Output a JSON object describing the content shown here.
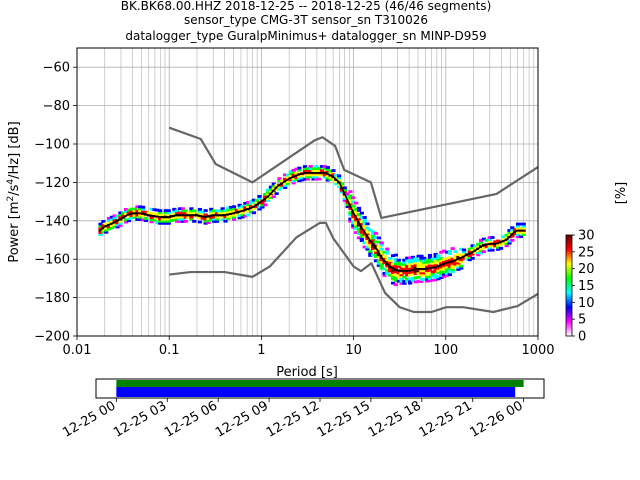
{
  "title_lines": [
    "BK.BK68.00.HHZ   2018-12-25 -- 2018-12-25  (46/46 segments)",
    "sensor_type CMG-3T sensor_sn T310026",
    "datalogger_type GuralpMinimus+ datalogger_sn MINP-D959"
  ],
  "chart_data": [
    {
      "type": "heatmap",
      "title": "",
      "xlabel": "Period [s]",
      "ylabel_parts": [
        "Power [m",
        "2",
        "/s",
        "4",
        "/Hz] [dB]"
      ],
      "xscale": "log",
      "xlim": [
        0.01,
        1000
      ],
      "ylim": [
        -200,
        -50
      ],
      "x_tick_labels": [
        "0.01",
        "0.1",
        "1",
        "10",
        "100",
        "1000"
      ],
      "y_ticks": [
        -60,
        -80,
        -100,
        -120,
        -140,
        -160,
        -180,
        -200
      ],
      "y_tick_labels": [
        "−60",
        "−80",
        "−100",
        "−120",
        "−140",
        "−160",
        "−180",
        "−200"
      ],
      "grid": true,
      "colormap": [
        "#ffffff",
        "#ff00ff",
        "#0000ff",
        "#00ffff",
        "#00ff00",
        "#ffff00",
        "#ff0000",
        "#600000"
      ],
      "series": [
        {
          "key": "mode",
          "color": "#000000",
          "x": [
            0.018,
            0.02,
            0.025,
            0.03,
            0.035,
            0.04,
            0.05,
            0.06,
            0.08,
            0.1,
            0.12,
            0.15,
            0.2,
            0.25,
            0.3,
            0.4,
            0.5,
            0.6,
            0.8,
            1.0,
            1.2,
            1.5,
            2.0,
            2.5,
            3.0,
            3.5,
            4.0,
            5.0,
            6.0,
            7.0,
            8.0,
            10.0,
            12.0,
            15.0,
            18.0,
            20.0,
            25.0,
            30.0,
            40.0,
            50.0,
            60.0,
            80.0,
            100.0,
            120.0,
            150.0,
            200.0,
            250.0,
            300.0,
            350.0,
            400.0,
            450.0,
            500.0,
            550.0,
            600.0,
            650.0,
            700.0
          ],
          "y": [
            -145,
            -143,
            -141,
            -139,
            -137,
            -136,
            -136,
            -137,
            -138,
            -138,
            -137,
            -137,
            -137,
            -138,
            -137,
            -137,
            -136,
            -135,
            -133,
            -130,
            -127,
            -122,
            -118,
            -116,
            -115,
            -115,
            -115,
            -115,
            -117,
            -120,
            -126,
            -136,
            -143,
            -150,
            -155,
            -159,
            -164,
            -166,
            -166,
            -165,
            -165,
            -164,
            -162,
            -161,
            -159,
            -156,
            -153,
            -152,
            -152,
            -151,
            -150,
            -148,
            -146,
            -145,
            -145,
            -145
          ]
        },
        {
          "key": "high_noise_model",
          "color": "#666666",
          "x": [
            0.1,
            0.22,
            0.32,
            0.8,
            3.8,
            4.6,
            6.3,
            7.9,
            15.4,
            20.0,
            354.8,
            1000.0
          ],
          "y": [
            -91.5,
            -97.4,
            -110.5,
            -120.0,
            -98.0,
            -96.5,
            -101.0,
            -113.5,
            -120.0,
            -138.5,
            -126.0,
            -112.0
          ]
        },
        {
          "key": "low_noise_model",
          "color": "#666666",
          "x": [
            0.1,
            0.17,
            0.4,
            0.8,
            1.24,
            2.4,
            4.3,
            5.0,
            6.0,
            10.0,
            12.0,
            15.6,
            21.9,
            31.6,
            45.0,
            70.0,
            101.0,
            154.0,
            328.0,
            600.0,
            1000.0
          ],
          "y": [
            -168.0,
            -166.7,
            -166.7,
            -169.2,
            -163.7,
            -148.6,
            -141.1,
            -141.1,
            -149.0,
            -163.8,
            -166.2,
            -162.1,
            -177.5,
            -185.0,
            -187.5,
            -187.5,
            -185.0,
            -185.0,
            -187.5,
            -184.4,
            -178.0
          ]
        }
      ]
    },
    {
      "type": "colorbar",
      "label": "[%]",
      "ticks": [
        0,
        5,
        10,
        15,
        20,
        25,
        30
      ],
      "tick_labels": [
        "0",
        "5",
        "10",
        "15",
        "20",
        "25",
        "30"
      ],
      "range": [
        0,
        30
      ]
    },
    {
      "type": "timeline",
      "tick_labels": [
        "12-25 00",
        "12-25 03",
        "12-25 06",
        "12-25 09",
        "12-25 12",
        "12-25 15",
        "12-25 18",
        "12-25 21",
        "12-26 00"
      ],
      "tick_hours": [
        0,
        3,
        6,
        9,
        12,
        15,
        18,
        21,
        24
      ],
      "xlim_hours": [
        -1.2,
        25.2
      ],
      "bars": [
        {
          "key": "data_available",
          "color": "#008000",
          "start_hour": 0,
          "end_hour": 24.0
        },
        {
          "key": "segments_used",
          "color": "#0000ff",
          "start_hour": 0,
          "end_hour": 23.5
        }
      ]
    }
  ]
}
